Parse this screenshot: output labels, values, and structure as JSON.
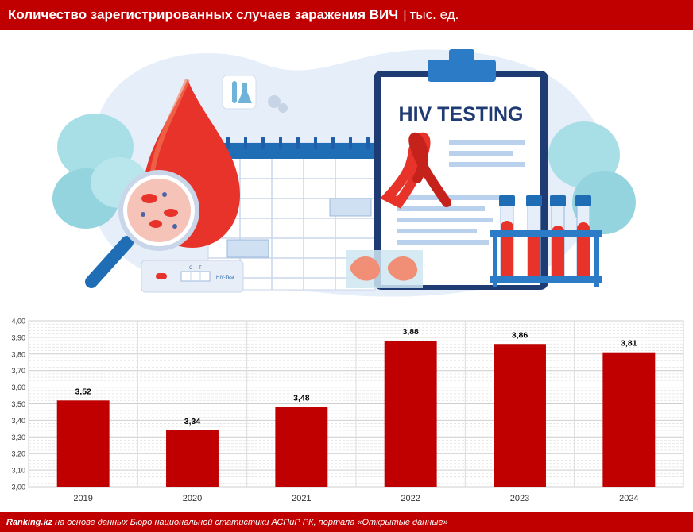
{
  "header": {
    "title": "Количество зарегистрированных случаев заражения ВИЧ",
    "separator": "|",
    "unit": "тыс. ед."
  },
  "illustration": {
    "clipboard_heading": "HIV TESTING",
    "test_strip_label": "HIV-Test",
    "test_strip_marks": [
      "C",
      "T"
    ]
  },
  "chart_data": {
    "type": "bar",
    "title": "Количество зарегистрированных случаев заражения ВИЧ",
    "unit": "тыс. ед.",
    "categories": [
      "2019",
      "2020",
      "2021",
      "2022",
      "2023",
      "2024"
    ],
    "values": [
      3.52,
      3.34,
      3.48,
      3.88,
      3.86,
      3.81
    ],
    "value_labels": [
      "3,52",
      "3,34",
      "3,48",
      "3,88",
      "3,86",
      "3,81"
    ],
    "ylim": [
      3.0,
      4.0
    ],
    "yticks": [
      "3,00",
      "3,10",
      "3,20",
      "3,30",
      "3,40",
      "3,50",
      "3,60",
      "3,70",
      "3,80",
      "3,90",
      "4,00"
    ],
    "grid": true,
    "bar_color": "#c00000",
    "xlabel": "",
    "ylabel": ""
  },
  "footer": {
    "source_site": "Ranking.kz",
    "source_text": "на основе данных Бюро национальной статистики АСПиР РК, портала «Открытые данные»"
  },
  "colors": {
    "brand_red": "#c00000",
    "blood_red": "#e8332a",
    "illustration_blue": "#1f5fa8",
    "background_blob": "#e6eef9",
    "leaf_teal": "#a8dfe6"
  }
}
